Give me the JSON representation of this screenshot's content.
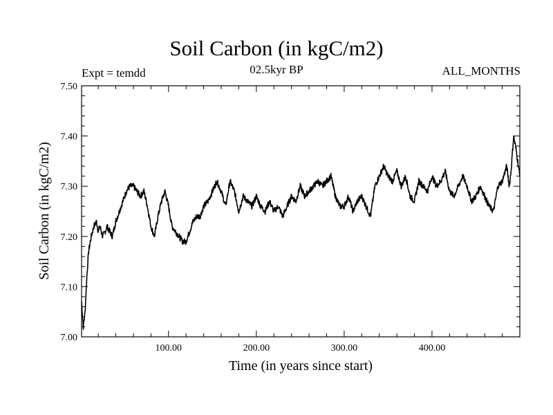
{
  "chart_data": {
    "type": "line",
    "title": "Soil Carbon (in kgC/m2)",
    "subtitle_left": "Expt = temdd",
    "subtitle_center": "02.5kyr BP",
    "subtitle_right": "ALL_MONTHS",
    "xlabel": "Time (in years since start)",
    "ylabel": "Soil Carbon (in kgC/m2)",
    "xlim": [
      1,
      500
    ],
    "ylim": [
      7.0,
      7.5
    ],
    "x_ticks": [
      100,
      200,
      300,
      400
    ],
    "x_tick_labels": [
      "100.00",
      "200.00",
      "300.00",
      "400.00"
    ],
    "y_ticks": [
      7.0,
      7.1,
      7.2,
      7.3,
      7.4,
      7.5
    ],
    "y_tick_labels": [
      "7.00",
      "7.10",
      "7.20",
      "7.30",
      "7.40",
      "7.50"
    ],
    "grid": false,
    "series": [
      {
        "name": "Soil Carbon",
        "x": [
          1,
          3,
          5,
          7,
          9,
          12,
          15,
          18,
          20,
          22,
          25,
          28,
          30,
          33,
          36,
          40,
          44,
          48,
          52,
          56,
          60,
          64,
          68,
          72,
          76,
          80,
          84,
          88,
          92,
          96,
          100,
          104,
          108,
          112,
          116,
          120,
          124,
          128,
          132,
          136,
          140,
          145,
          150,
          155,
          160,
          165,
          170,
          175,
          180,
          185,
          190,
          195,
          200,
          205,
          210,
          215,
          220,
          225,
          230,
          235,
          240,
          245,
          250,
          255,
          260,
          265,
          270,
          275,
          280,
          285,
          290,
          295,
          300,
          305,
          310,
          315,
          320,
          325,
          330,
          335,
          340,
          345,
          350,
          355,
          360,
          365,
          370,
          375,
          380,
          385,
          390,
          395,
          400,
          405,
          410,
          415,
          420,
          425,
          430,
          435,
          440,
          445,
          450,
          455,
          460,
          465,
          470,
          475,
          480,
          485,
          488,
          490,
          493,
          496,
          500
        ],
        "values": [
          7.07,
          7.02,
          7.05,
          7.12,
          7.17,
          7.2,
          7.22,
          7.23,
          7.21,
          7.22,
          7.2,
          7.21,
          7.22,
          7.21,
          7.2,
          7.23,
          7.25,
          7.27,
          7.29,
          7.3,
          7.3,
          7.29,
          7.28,
          7.29,
          7.26,
          7.22,
          7.2,
          7.24,
          7.27,
          7.29,
          7.26,
          7.22,
          7.21,
          7.2,
          7.19,
          7.19,
          7.21,
          7.23,
          7.24,
          7.24,
          7.26,
          7.27,
          7.29,
          7.31,
          7.29,
          7.26,
          7.31,
          7.29,
          7.25,
          7.28,
          7.27,
          7.26,
          7.28,
          7.26,
          7.25,
          7.27,
          7.25,
          7.26,
          7.24,
          7.26,
          7.28,
          7.27,
          7.3,
          7.28,
          7.29,
          7.3,
          7.31,
          7.3,
          7.31,
          7.32,
          7.28,
          7.26,
          7.26,
          7.28,
          7.25,
          7.27,
          7.28,
          7.26,
          7.24,
          7.3,
          7.32,
          7.34,
          7.32,
          7.31,
          7.33,
          7.3,
          7.32,
          7.28,
          7.27,
          7.31,
          7.3,
          7.29,
          7.32,
          7.3,
          7.31,
          7.33,
          7.29,
          7.28,
          7.3,
          7.32,
          7.3,
          7.27,
          7.28,
          7.3,
          7.28,
          7.26,
          7.25,
          7.3,
          7.31,
          7.34,
          7.3,
          7.33,
          7.4,
          7.37,
          7.32
        ]
      }
    ]
  }
}
